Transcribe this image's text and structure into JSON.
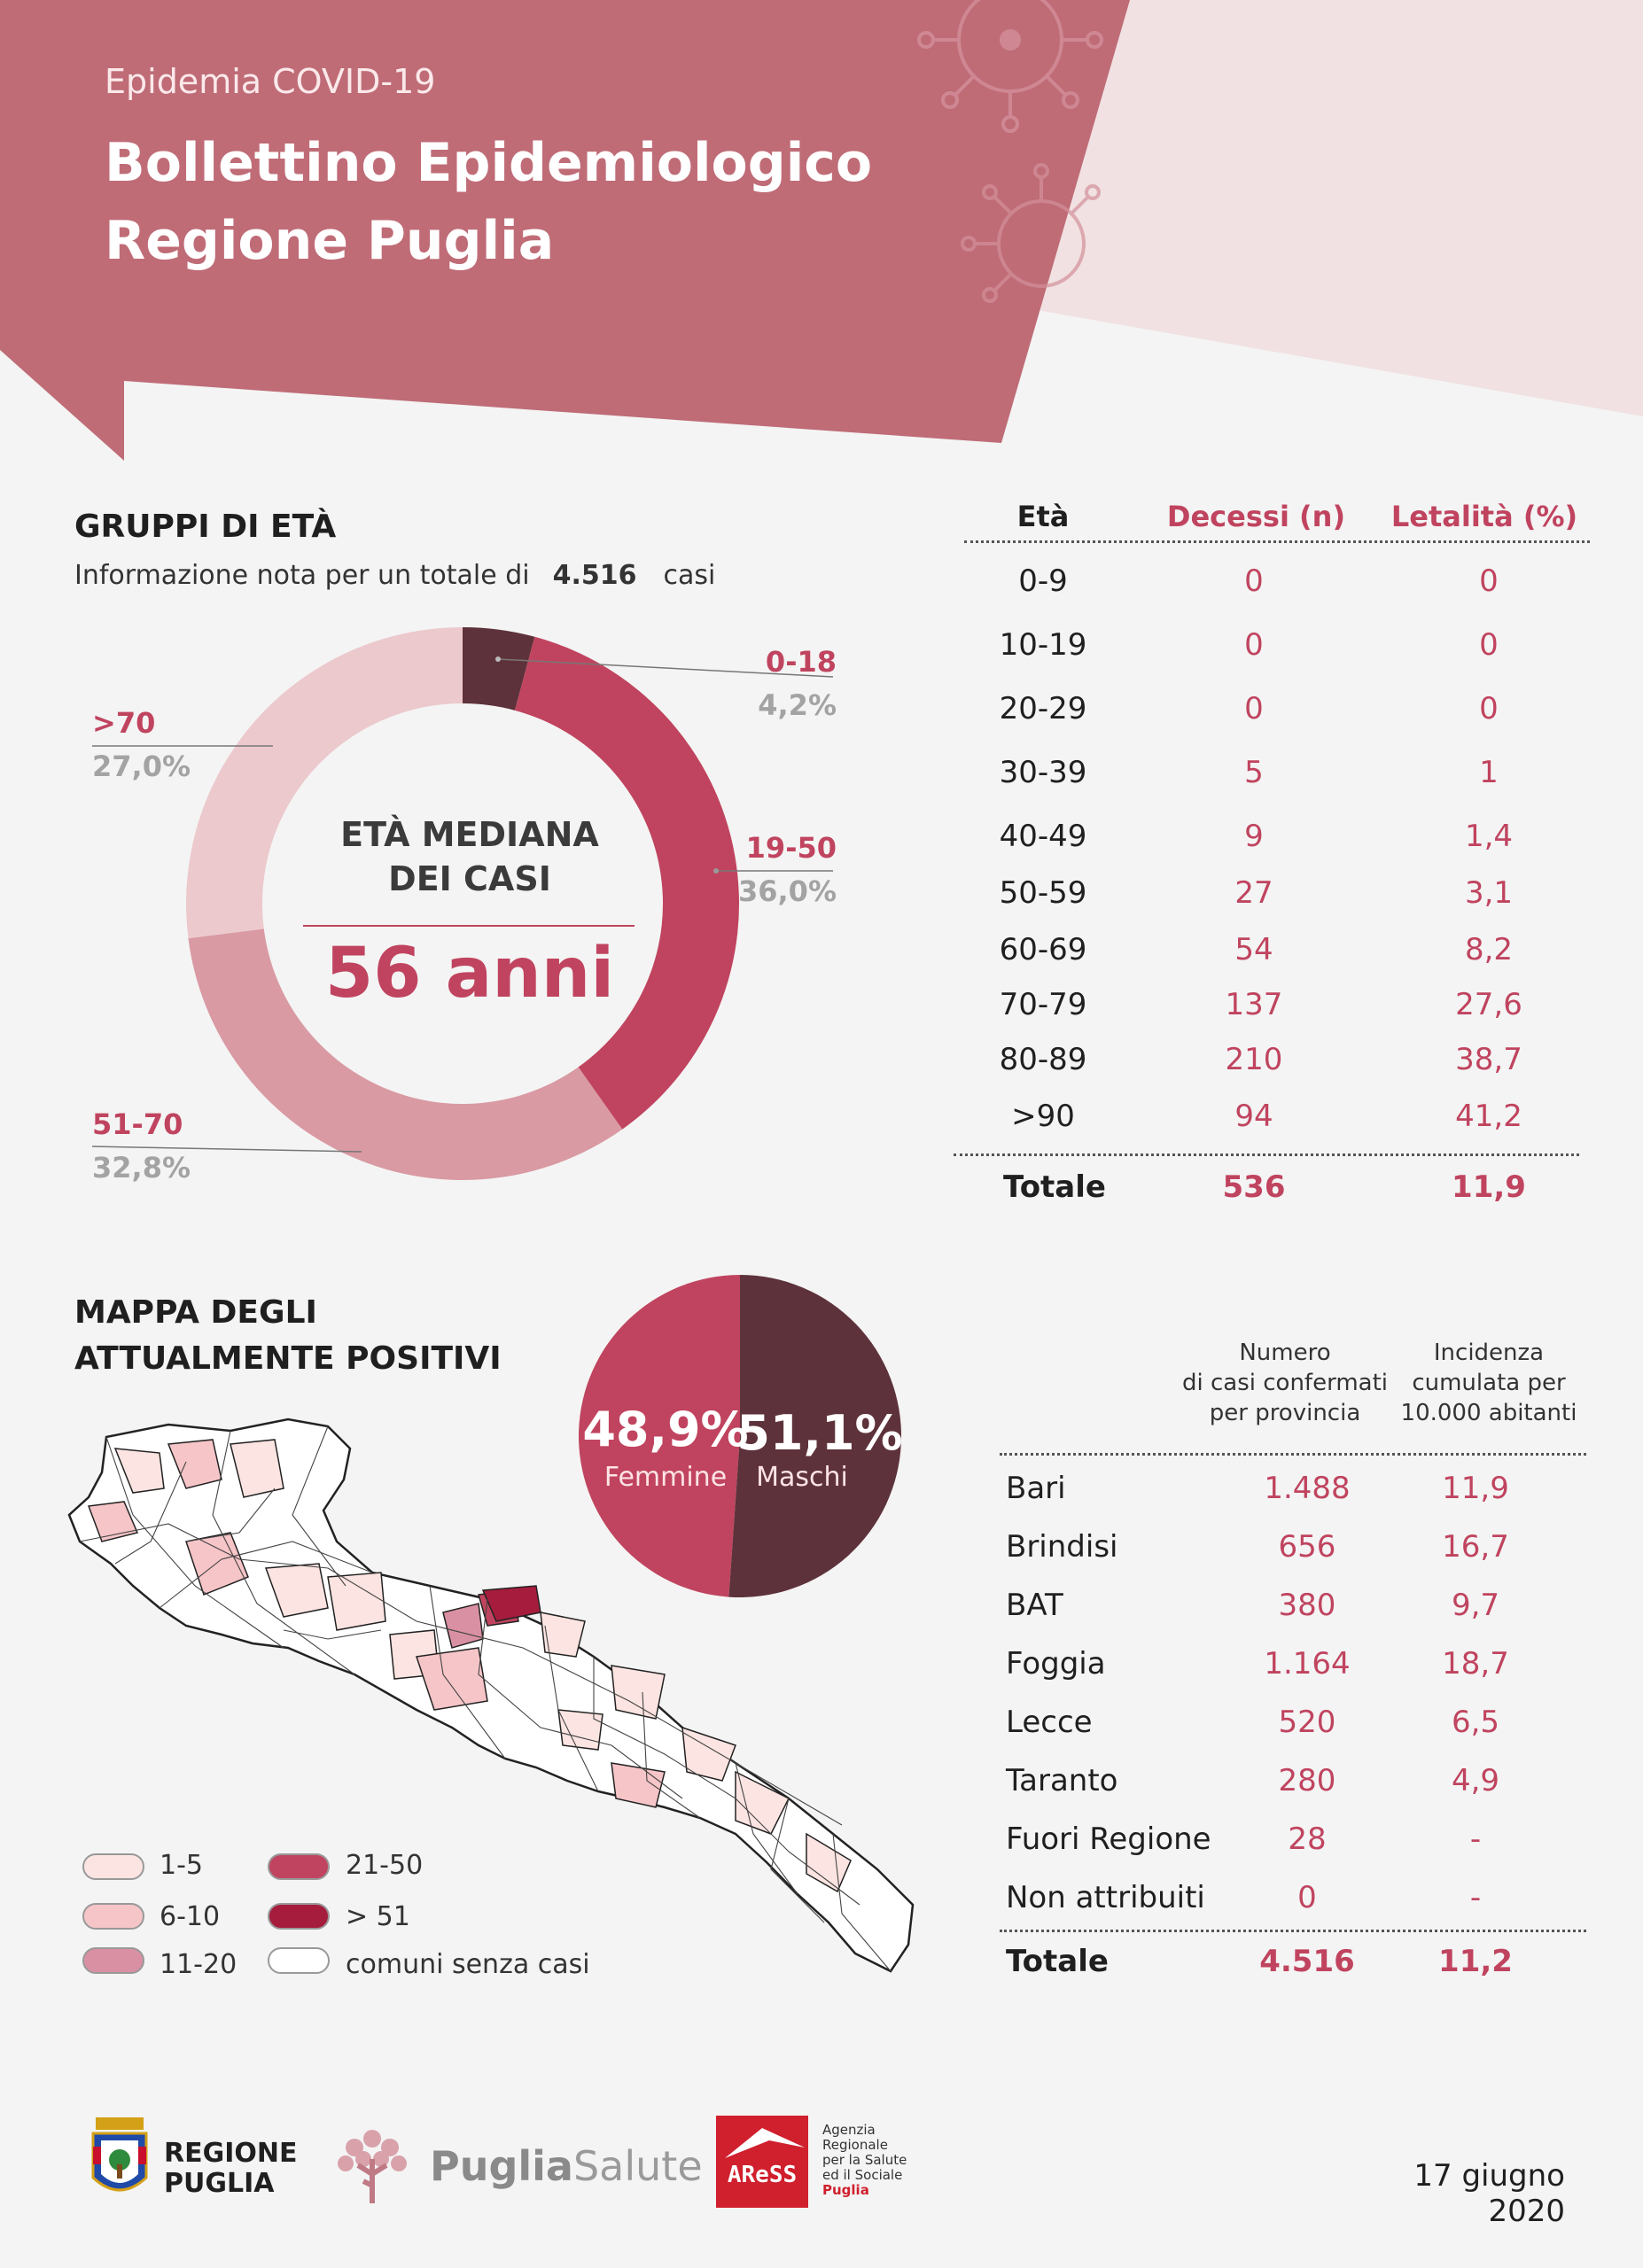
{
  "header": {
    "subtitle": "Epidemia COVID-19",
    "title_line1": "Bollettino Epidemiologico",
    "title_line2": "Regione Puglia"
  },
  "age_groups": {
    "title": "GRUPPI DI ETÀ",
    "info_prefix": "Informazione nota per un totale di",
    "info_total": "4.516",
    "info_suffix": "casi",
    "median_line1": "ETÀ MEDIANA",
    "median_line2": "DEI CASI",
    "median_value": "56 anni"
  },
  "chart_data": {
    "type": "pie",
    "categories": [
      "0-18",
      "19-50",
      "51-70",
      ">70"
    ],
    "values": [
      4.2,
      36.0,
      32.8,
      27.0
    ],
    "value_labels": [
      "4,2%",
      "36,0%",
      "32,8%",
      "27,0%"
    ],
    "colors": [
      "#5e323a",
      "#c0445f",
      "#d99aa3",
      "#ecc9cd"
    ],
    "title": "",
    "legend": "none"
  },
  "mortality_table": {
    "headers": [
      "Età",
      "Decessi (n)",
      "Letalità (%)"
    ],
    "rows": [
      [
        "0-9",
        "0",
        "0"
      ],
      [
        "10-19",
        "0",
        "0"
      ],
      [
        "20-29",
        "0",
        "0"
      ],
      [
        "30-39",
        "5",
        "1"
      ],
      [
        "40-49",
        "9",
        "1,4"
      ],
      [
        "50-59",
        "27",
        "3,1"
      ],
      [
        "60-69",
        "54",
        "8,2"
      ],
      [
        "70-79",
        "137",
        "27,6"
      ],
      [
        "80-89",
        "210",
        "38,7"
      ],
      [
        ">90",
        "94",
        "41,2"
      ]
    ],
    "total": [
      "Totale",
      "536",
      "11,9"
    ]
  },
  "map": {
    "title_line1": "MAPPA DEGLI",
    "title_line2": "ATTUALMENTE POSITIVI",
    "legend": [
      {
        "label": "1-5",
        "color": "#fbe4e1"
      },
      {
        "label": "6-10",
        "color": "#f6c5c8"
      },
      {
        "label": "11-20",
        "color": "#d990a2"
      },
      {
        "label": "21-50",
        "color": "#c0445f"
      },
      {
        "label": "> 51",
        "color": "#a51c3d"
      },
      {
        "label": "comuni senza casi",
        "color": "#ffffff"
      }
    ]
  },
  "gender": {
    "female_pct": 48.9,
    "female_value": "48,9%",
    "female_label": "Femmine",
    "male_value": "51,1%",
    "male_label": "Maschi",
    "female_color": "#c0445f",
    "male_color": "#5e323a"
  },
  "province_table": {
    "header_cases": [
      "Numero",
      "di casi confermati",
      "per provincia"
    ],
    "header_incidence": [
      "Incidenza",
      "cumulata per",
      "10.000 abitanti"
    ],
    "rows": [
      [
        "Bari",
        "1.488",
        "11,9"
      ],
      [
        "Brindisi",
        "656",
        "16,7"
      ],
      [
        "BAT",
        "380",
        "9,7"
      ],
      [
        "Foggia",
        "1.164",
        "18,7"
      ],
      [
        "Lecce",
        "520",
        "6,5"
      ],
      [
        "Taranto",
        "280",
        "4,9"
      ],
      [
        "Fuori Regione",
        "28",
        "-"
      ],
      [
        "Non attribuiti",
        "0",
        "-"
      ]
    ],
    "total": [
      "Totale",
      "4.516",
      "11,2"
    ]
  },
  "footer": {
    "regione_line1": "REGIONE",
    "regione_line2": "PUGLIA",
    "puglia": "Puglia",
    "salute": "Salute",
    "aress": "AReSS",
    "aress_desc": [
      "Agenzia",
      "Regionale",
      "per la Salute",
      "ed il Sociale",
      "Puglia"
    ],
    "date": "17 giugno 2020"
  }
}
